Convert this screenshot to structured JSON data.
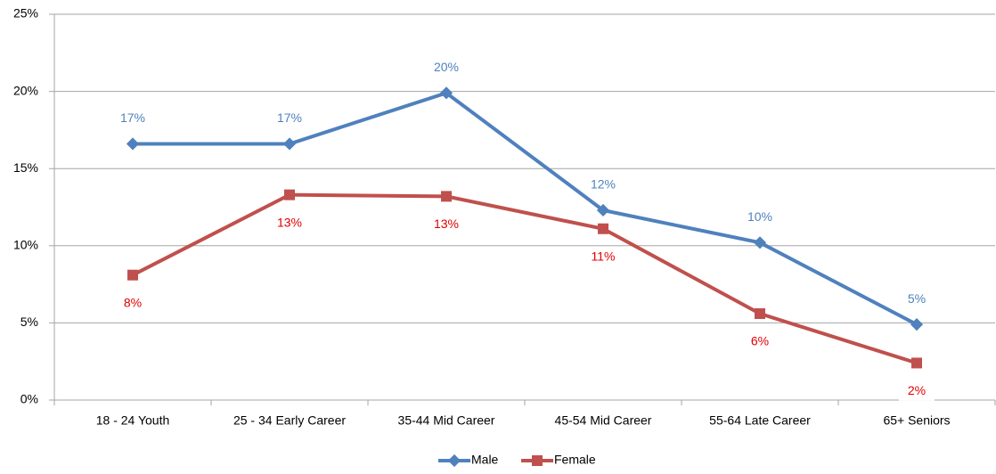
{
  "chart_data": {
    "type": "line",
    "categories": [
      "18 - 24 Youth",
      "25 - 34 Early Career",
      "35-44 Mid Career",
      "45-54 Mid Career",
      "55-64 Late Career",
      "65+ Seniors"
    ],
    "series": [
      {
        "name": "Male",
        "color": "#4f81bd",
        "values": [
          16.6,
          16.6,
          19.9,
          12.3,
          10.2,
          4.9
        ],
        "value_labels": [
          "17%",
          "17%",
          "20%",
          "12%",
          "10%",
          "5%"
        ]
      },
      {
        "name": "Female",
        "color": "#c0504d",
        "values": [
          8.1,
          13.3,
          13.2,
          11.1,
          5.6,
          2.4
        ],
        "value_labels": [
          "8%",
          "13%",
          "13%",
          "11%",
          "6%",
          "2%"
        ]
      }
    ],
    "ylim": [
      0,
      25
    ],
    "yticks": [
      {
        "value": 0,
        "label": "0%"
      },
      {
        "value": 5,
        "label": "5%"
      },
      {
        "value": 10,
        "label": "10%"
      },
      {
        "value": 15,
        "label": "15%"
      },
      {
        "value": 20,
        "label": "20%"
      },
      {
        "value": 25,
        "label": "25%"
      }
    ],
    "grid": true,
    "legend": "bottom"
  }
}
